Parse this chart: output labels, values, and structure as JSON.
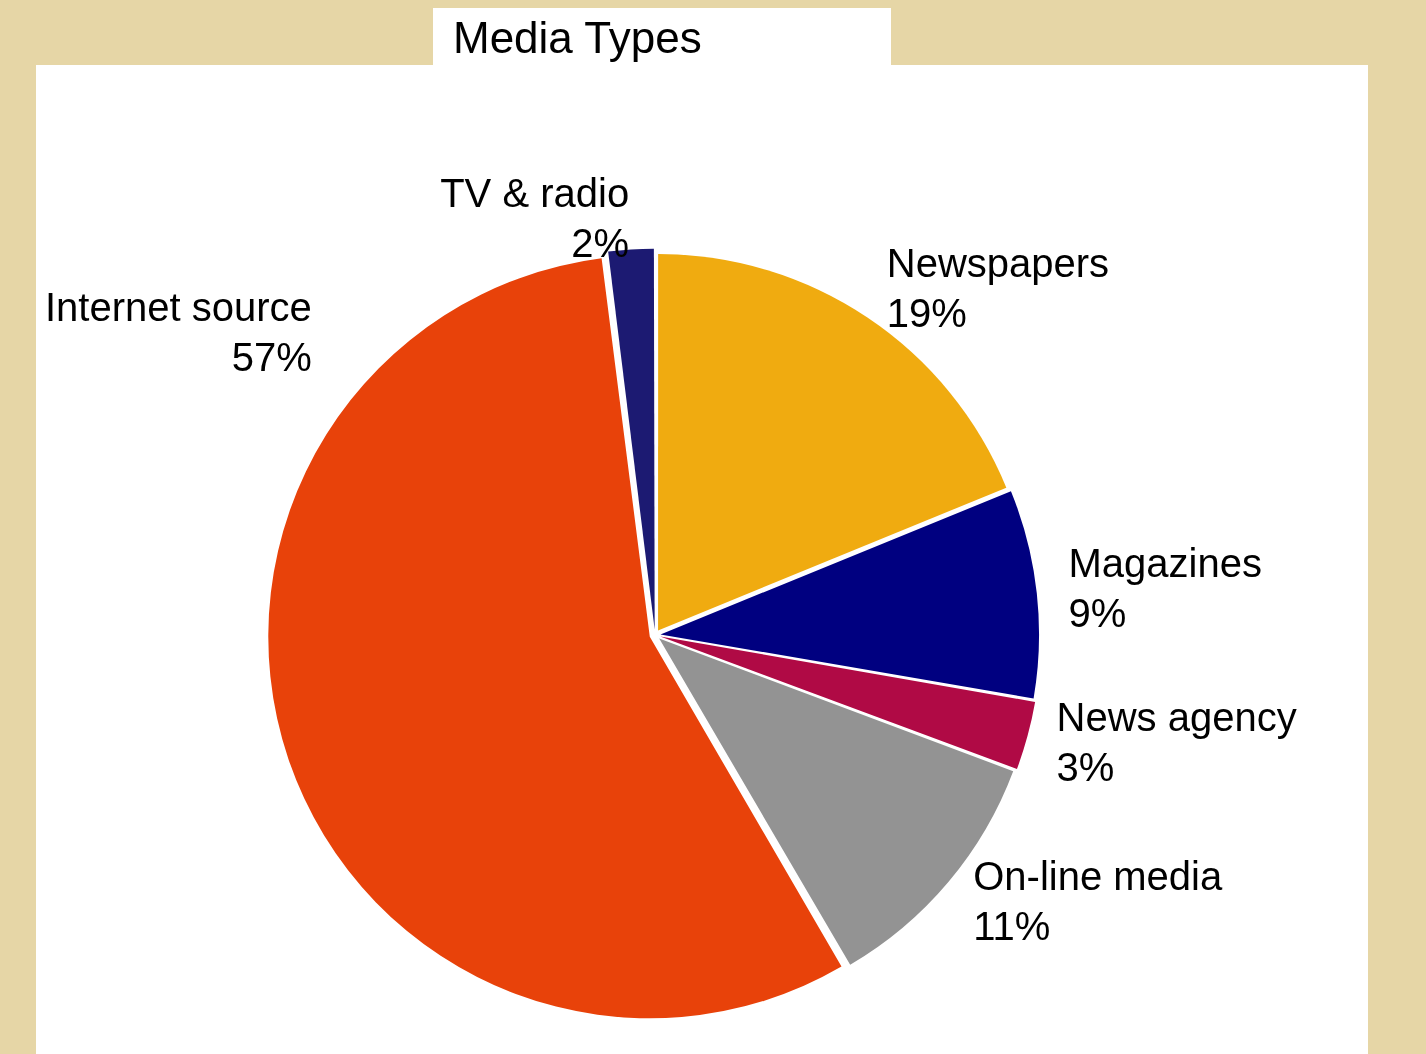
{
  "chart_data": {
    "type": "pie",
    "title": "Media Types",
    "categories": [
      "Newspapers",
      "Magazines",
      "News agency",
      "On-line media",
      "Internet source",
      "TV & radio"
    ],
    "values": [
      19,
      9,
      3,
      11,
      57,
      2
    ],
    "value_labels": [
      "19%",
      "9%",
      "3%",
      "11%",
      "57%",
      "2%"
    ],
    "colors": [
      "#f0ab10",
      "#000080",
      "#b00a45",
      "#939393",
      "#e8420a",
      "#1c1a72"
    ],
    "legend": false
  }
}
